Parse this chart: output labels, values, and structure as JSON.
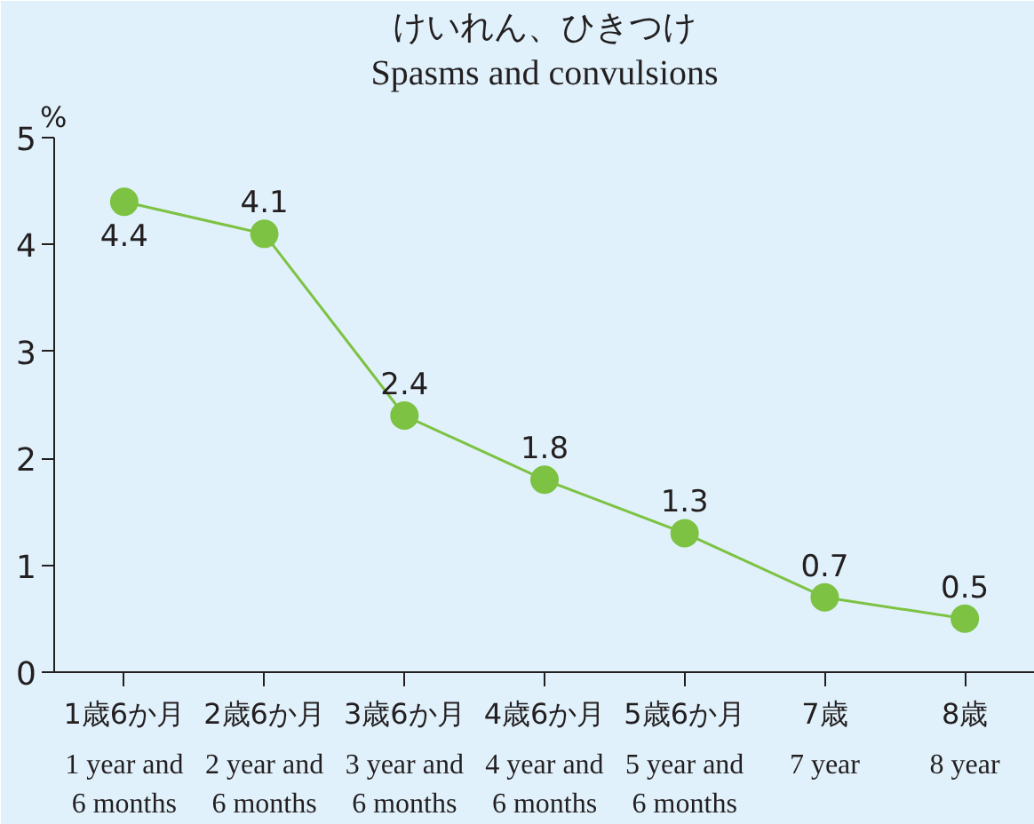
{
  "chart_data": {
    "type": "line",
    "title": "けいれん、ひきつけ",
    "subtitle": "Spasms and convulsions",
    "ylabel": "%",
    "categories": [
      "1歳6か月\n1 year and\n6 months",
      "2歳6か月\n2 year and\n6 months",
      "3歳6か月\n3 year and\n6 months",
      "4歳6か月\n4 year and\n6 months",
      "5歳6か月\n5 year and\n6 months",
      "7歳\n7 year",
      "8歳\n8 year"
    ],
    "series": [
      {
        "color": "#7dc242",
        "values": [
          4.4,
          4.1,
          2.4,
          1.8,
          1.3,
          0.7,
          0.5
        ]
      }
    ],
    "ylim": [
      0,
      5
    ],
    "yticks": [
      0,
      1,
      2,
      3,
      4,
      5
    ],
    "data_labels": true,
    "marker": "circle",
    "grid": false
  }
}
